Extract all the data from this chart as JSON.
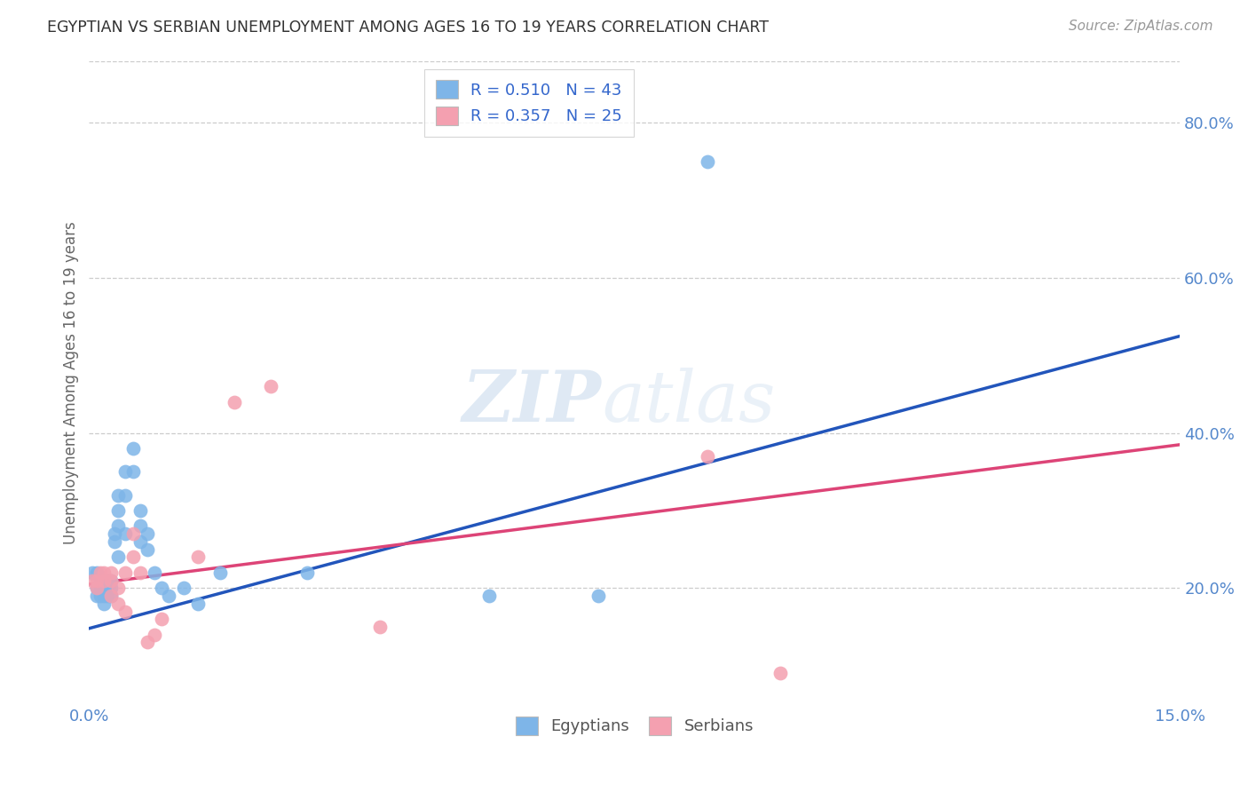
{
  "title": "EGYPTIAN VS SERBIAN UNEMPLOYMENT AMONG AGES 16 TO 19 YEARS CORRELATION CHART",
  "source": "Source: ZipAtlas.com",
  "ylabel": "Unemployment Among Ages 16 to 19 years",
  "xlim": [
    0.0,
    0.15
  ],
  "ylim": [
    0.05,
    0.88
  ],
  "yticks_right": [
    0.2,
    0.4,
    0.6,
    0.8
  ],
  "ytick_labels_right": [
    "20.0%",
    "40.0%",
    "60.0%",
    "80.0%"
  ],
  "egyptian_color": "#7EB5E8",
  "serbian_color": "#F4A0B0",
  "trendline_blue": "#2255BB",
  "trendline_pink": "#DD4477",
  "background_color": "#FFFFFF",
  "egyptian_x": [
    0.0005,
    0.001,
    0.001,
    0.001,
    0.0015,
    0.0015,
    0.0015,
    0.002,
    0.002,
    0.002,
    0.002,
    0.0025,
    0.0025,
    0.0025,
    0.003,
    0.003,
    0.003,
    0.0035,
    0.0035,
    0.004,
    0.004,
    0.004,
    0.004,
    0.005,
    0.005,
    0.005,
    0.006,
    0.006,
    0.007,
    0.007,
    0.007,
    0.008,
    0.008,
    0.009,
    0.01,
    0.011,
    0.013,
    0.015,
    0.018,
    0.03,
    0.055,
    0.07,
    0.085
  ],
  "egyptian_y": [
    0.22,
    0.22,
    0.2,
    0.19,
    0.21,
    0.2,
    0.19,
    0.21,
    0.2,
    0.19,
    0.18,
    0.21,
    0.2,
    0.19,
    0.21,
    0.2,
    0.19,
    0.27,
    0.26,
    0.32,
    0.3,
    0.28,
    0.24,
    0.35,
    0.32,
    0.27,
    0.38,
    0.35,
    0.3,
    0.28,
    0.26,
    0.27,
    0.25,
    0.22,
    0.2,
    0.19,
    0.2,
    0.18,
    0.22,
    0.22,
    0.19,
    0.19,
    0.75
  ],
  "serbian_x": [
    0.0005,
    0.001,
    0.001,
    0.0015,
    0.002,
    0.002,
    0.003,
    0.003,
    0.003,
    0.004,
    0.004,
    0.005,
    0.005,
    0.006,
    0.006,
    0.007,
    0.008,
    0.009,
    0.01,
    0.015,
    0.02,
    0.025,
    0.04,
    0.085,
    0.095
  ],
  "serbian_y": [
    0.21,
    0.21,
    0.2,
    0.22,
    0.22,
    0.21,
    0.22,
    0.21,
    0.19,
    0.2,
    0.18,
    0.22,
    0.17,
    0.27,
    0.24,
    0.22,
    0.13,
    0.14,
    0.16,
    0.24,
    0.44,
    0.46,
    0.15,
    0.37,
    0.09
  ],
  "blue_trendline_x0": 0.0,
  "blue_trendline_y0": 0.148,
  "blue_trendline_x1": 0.15,
  "blue_trendline_y1": 0.525,
  "pink_trendline_x0": 0.0,
  "pink_trendline_y0": 0.205,
  "pink_trendline_x1": 0.15,
  "pink_trendline_y1": 0.385
}
